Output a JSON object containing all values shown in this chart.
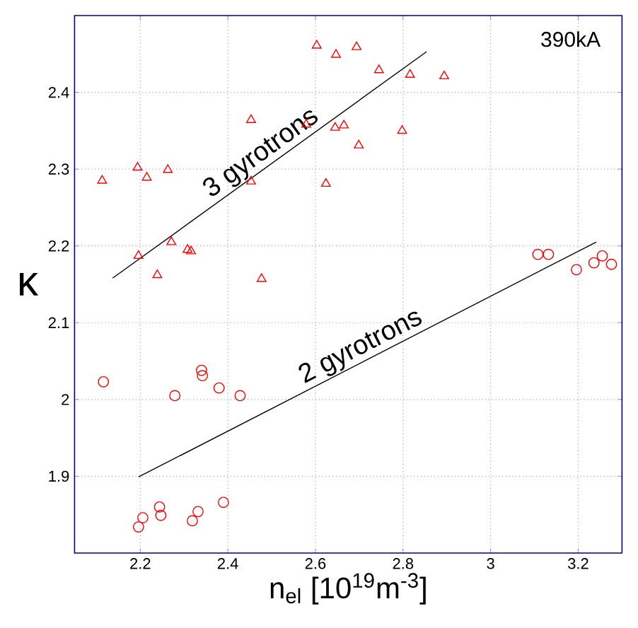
{
  "chart_data": {
    "type": "scatter",
    "xlabel": "n$_{el}$ [10$^{19}$m$^{-3}$]",
    "ylabel": "κ",
    "xlim": [
      2.05,
      3.3
    ],
    "ylim": [
      1.8,
      2.5
    ],
    "xticks": [
      2.2,
      2.4,
      2.6,
      2.8,
      3,
      3.2
    ],
    "yticks": [
      1.9,
      2,
      2.1,
      2.2,
      2.3,
      2.4
    ],
    "grid": true,
    "series": [
      {
        "color": "#ff0000",
        "marker": "triangle",
        "x": [
          2.113,
          2.194,
          2.215,
          2.263,
          2.453,
          2.453,
          2.579,
          2.603,
          2.647,
          2.694,
          2.645,
          2.665,
          2.699,
          2.624,
          2.196,
          2.271,
          2.308,
          2.316,
          2.239,
          2.477,
          2.745,
          2.816,
          2.894,
          2.798
        ],
        "values": [
          2.285,
          2.302,
          2.289,
          2.299,
          2.284,
          2.364,
          2.358,
          2.461,
          2.449,
          2.459,
          2.354,
          2.357,
          2.331,
          2.281,
          2.187,
          2.205,
          2.195,
          2.193,
          2.162,
          2.157,
          2.429,
          2.423,
          2.421,
          2.35
        ]
      },
      {
        "color": "#ff0000",
        "marker": "circle",
        "x": [
          2.116,
          2.279,
          2.34,
          2.342,
          2.38,
          2.428,
          2.244,
          2.247,
          2.206,
          2.196,
          2.319,
          2.332,
          2.39,
          3.108,
          3.132,
          3.196,
          3.236,
          3.255,
          3.276
        ],
        "values": [
          2.023,
          2.005,
          2.038,
          2.031,
          2.015,
          2.005,
          1.86,
          1.849,
          1.846,
          1.834,
          1.842,
          1.854,
          1.866,
          2.189,
          2.189,
          2.169,
          2.178,
          2.187,
          2.176
        ]
      },
      {
        "type": "line",
        "color": "#000000",
        "marker": "none",
        "x": [
          2.137,
          2.854
        ],
        "values": [
          2.158,
          2.453
        ]
      },
      {
        "type": "line",
        "color": "#000000",
        "marker": "none",
        "x": [
          2.196,
          3.241
        ],
        "values": [
          1.899,
          2.205
        ]
      }
    ],
    "annotations": [
      "3 gyrotrons",
      "2 gyrotrons",
      "390kA"
    ]
  }
}
